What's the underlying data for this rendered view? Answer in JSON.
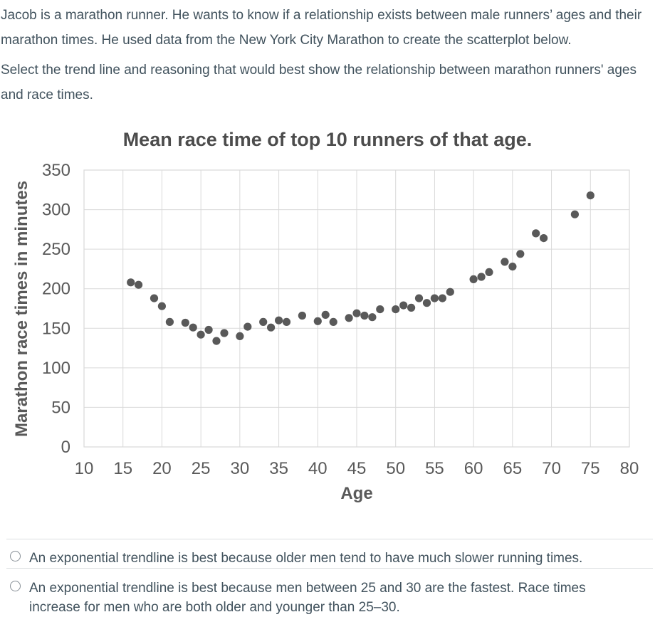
{
  "question": {
    "paragraph1": "Jacob is a marathon runner. He wants to know if a relationship exists between male runners’ ages and their marathon times. He used data from the New York City Marathon to create the scatterplot below.",
    "paragraph2": "Select the trend line and reasoning that would best show the relationship between marathon runners' ages and race times."
  },
  "chart_data": {
    "type": "scatter",
    "title": "Mean race time of top 10 runners of that age.",
    "xlabel": "Age",
    "ylabel": "Marathon race times in minutes",
    "xlim": [
      10,
      80
    ],
    "ylim": [
      0,
      350
    ],
    "x_ticks": [
      10,
      15,
      20,
      25,
      30,
      35,
      40,
      45,
      50,
      55,
      60,
      65,
      70,
      75,
      80
    ],
    "y_ticks": [
      0,
      50,
      100,
      150,
      200,
      250,
      300,
      350
    ],
    "grid": true,
    "legend": false,
    "points": [
      [
        16,
        208
      ],
      [
        17,
        205
      ],
      [
        19,
        188
      ],
      [
        20,
        178
      ],
      [
        21,
        158
      ],
      [
        23,
        157
      ],
      [
        24,
        151
      ],
      [
        25,
        142
      ],
      [
        26,
        148
      ],
      [
        27,
        134
      ],
      [
        28,
        144
      ],
      [
        30,
        140
      ],
      [
        31,
        152
      ],
      [
        33,
        158
      ],
      [
        34,
        151
      ],
      [
        35,
        160
      ],
      [
        36,
        158
      ],
      [
        38,
        166
      ],
      [
        40,
        159
      ],
      [
        41,
        167
      ],
      [
        42,
        158
      ],
      [
        44,
        163
      ],
      [
        45,
        169
      ],
      [
        46,
        166
      ],
      [
        47,
        164
      ],
      [
        48,
        174
      ],
      [
        50,
        174
      ],
      [
        51,
        179
      ],
      [
        52,
        176
      ],
      [
        53,
        188
      ],
      [
        54,
        182
      ],
      [
        55,
        188
      ],
      [
        56,
        188
      ],
      [
        57,
        196
      ],
      [
        60,
        212
      ],
      [
        61,
        215
      ],
      [
        62,
        221
      ],
      [
        64,
        234
      ],
      [
        65,
        228
      ],
      [
        66,
        244
      ],
      [
        68,
        270
      ],
      [
        69,
        264
      ],
      [
        73,
        294
      ],
      [
        75,
        318
      ]
    ]
  },
  "options": [
    {
      "label": "An exponential trendline is best because older men tend to have much slower running times.",
      "selected": false
    },
    {
      "label": "An exponential trendline is best because men between 25 and 30 are the fastest. Race times increase for men who are both older and younger than 25–30.",
      "selected": false
    }
  ],
  "colors": {
    "body_text": "#41525d",
    "chart_text": "#595959",
    "chart_title": "#4c4c4c",
    "marker": "#595959",
    "grid": "#d9d9d9",
    "divider": "#dcdfe1",
    "radio_border": "#878f96",
    "background": "#ffffff"
  }
}
